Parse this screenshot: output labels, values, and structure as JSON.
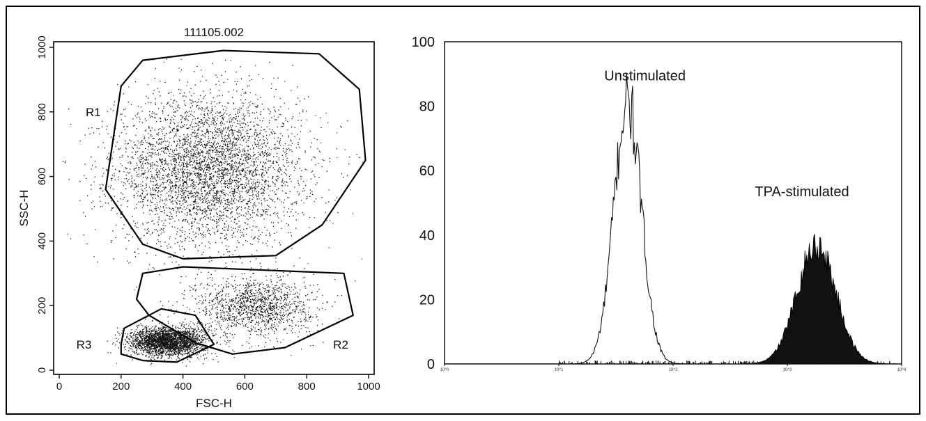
{
  "chart_data": [
    {
      "type": "scatter",
      "title": "111105.002",
      "xlabel": "FSC-H",
      "ylabel": "SSC-H",
      "xlim": [
        0,
        1000
      ],
      "ylim": [
        0,
        1000
      ],
      "xticks": [
        "0",
        "200",
        "400",
        "600",
        "800",
        "1000"
      ],
      "yticks": [
        "0",
        "200",
        "400",
        "600",
        "800",
        "1000"
      ],
      "grid": false,
      "populations": [
        {
          "name": "R1",
          "center": [
            480,
            620
          ],
          "spread": [
            150,
            115
          ],
          "count": 4200
        },
        {
          "name": "R2",
          "center": [
            630,
            200
          ],
          "spread": [
            95,
            45
          ],
          "count": 1300
        },
        {
          "name": "R3",
          "center": [
            350,
            90
          ],
          "spread": [
            60,
            22
          ],
          "count": 2600
        }
      ],
      "gates": [
        {
          "name": "R1",
          "label_at": [
            110,
            800
          ],
          "polygon": [
            [
              200,
              880
            ],
            [
              270,
              960
            ],
            [
              530,
              990
            ],
            [
              840,
              980
            ],
            [
              970,
              870
            ],
            [
              990,
              650
            ],
            [
              850,
              450
            ],
            [
              700,
              355
            ],
            [
              400,
              345
            ],
            [
              270,
              390
            ],
            [
              150,
              560
            ]
          ]
        },
        {
          "name": "R2",
          "label_at": [
            910,
            80
          ],
          "polygon": [
            [
              270,
              300
            ],
            [
              400,
              320
            ],
            [
              920,
              300
            ],
            [
              950,
              170
            ],
            [
              730,
              70
            ],
            [
              560,
              50
            ],
            [
              440,
              85
            ],
            [
              290,
              170
            ],
            [
              250,
              220
            ]
          ]
        },
        {
          "name": "R3",
          "label_at": [
            80,
            80
          ],
          "polygon": [
            [
              210,
              130
            ],
            [
              330,
              190
            ],
            [
              440,
              170
            ],
            [
              500,
              80
            ],
            [
              380,
              25
            ],
            [
              270,
              30
            ],
            [
              200,
              50
            ],
            [
              200,
              80
            ]
          ]
        }
      ]
    },
    {
      "type": "area",
      "xscale": "log",
      "xlim": [
        1,
        10000
      ],
      "ylim": [
        0,
        100
      ],
      "yticks": [
        "0",
        "20",
        "40",
        "60",
        "80",
        "100"
      ],
      "xticks": [
        "10^0",
        "10^1",
        "10^2",
        "10^3",
        "10^4"
      ],
      "grid": false,
      "series": [
        {
          "name": "Unstimulated",
          "peak_x": 40,
          "peak_y": 81,
          "log_sigma": 0.12,
          "style": "outline"
        },
        {
          "name": "TPA-stimulated",
          "peak_x": 1800,
          "peak_y": 37,
          "log_sigma": 0.17,
          "style": "filled"
        }
      ],
      "annotations": [
        {
          "text": "Unstimulated",
          "x": 25,
          "y": 88
        },
        {
          "text": "TPA-stimulated",
          "x": 520,
          "y": 52
        }
      ]
    }
  ]
}
